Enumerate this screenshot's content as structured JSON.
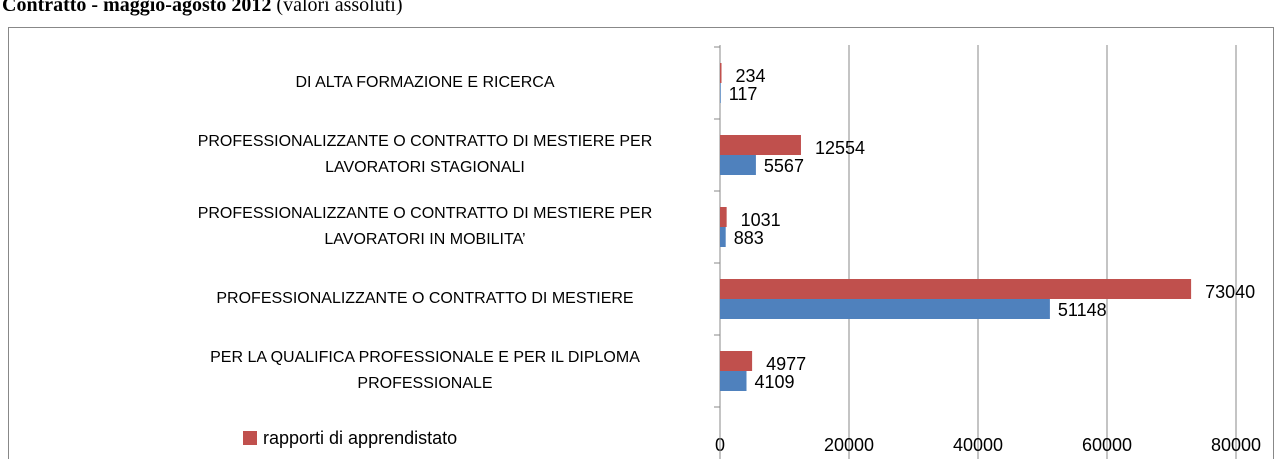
{
  "chart_data": {
    "type": "barh",
    "title": "Contratto - maggio-agosto 2012",
    "subtitle": "(valori assoluti)",
    "categories": [
      "DI ALTA FORMAZIONE E RICERCA",
      "PROFESSIONALIZZANTE O CONTRATTO DI MESTIERE PER\nLAVORATORI STAGIONALI",
      "PROFESSIONALIZZANTE O CONTRATTO DI MESTIERE PER\nLAVORATORI IN MOBILITA’",
      "PROFESSIONALIZZANTE O CONTRATTO DI MESTIERE",
      "PER LA QUALIFICA PROFESSIONALE E PER IL DIPLOMA\nPROFESSIONALE"
    ],
    "series": [
      {
        "name": "rapporti di apprendistato",
        "color": "#c0504d",
        "values": [
          234,
          12554,
          1031,
          73040,
          4977
        ]
      },
      {
        "color": "#4f81bd",
        "values": [
          117,
          5567,
          883,
          51148,
          4109
        ]
      }
    ],
    "xlim": [
      0,
      80000
    ],
    "xticks": [
      0,
      20000,
      40000,
      60000,
      80000
    ],
    "grid": true
  }
}
